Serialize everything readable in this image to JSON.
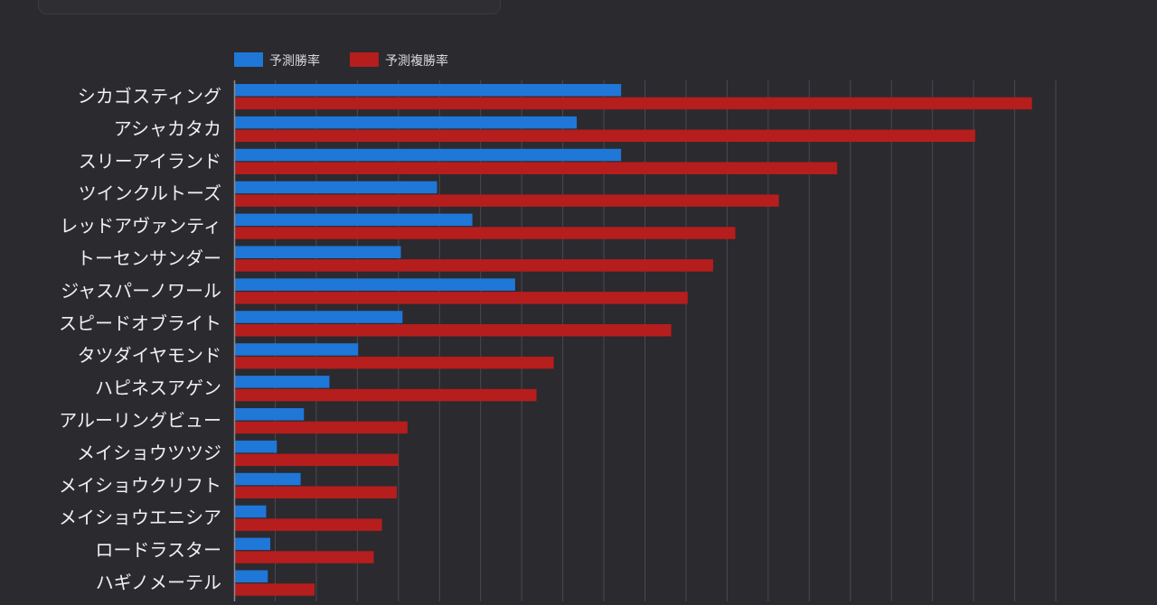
{
  "colors": {
    "win": "#1f77d8",
    "place": "#b61d1d",
    "grid": "#4a4950",
    "axis": "#8a8a90"
  },
  "chart_data": {
    "type": "bar",
    "orientation": "horizontal",
    "title": "",
    "xlabel": "",
    "ylabel": "",
    "legend_position": "top-left",
    "grid": true,
    "xlim": [
      0,
      100
    ],
    "categories": [
      "シカゴスティング",
      "アシャカタカ",
      "スリーアイランド",
      "ツインクルトーズ",
      "レッドアヴァンティ",
      "トーセンサンダー",
      "ジャスパーノワール",
      "スピードオブライト",
      "タツダイヤモンド",
      "ハピネスアゲン",
      "アルーリングビュー",
      "メイショウツツジ",
      "メイショウクリフト",
      "メイショウエニシア",
      "ロードラスター",
      "ハギノメーテル"
    ],
    "series": [
      {
        "name": "予測勝率",
        "color_key": "win",
        "values": [
          47.1,
          41.7,
          47.1,
          24.7,
          29.0,
          20.3,
          34.2,
          20.5,
          15.1,
          11.6,
          8.5,
          5.2,
          8.1,
          3.9,
          4.4,
          4.1
        ]
      },
      {
        "name": "予測複勝率",
        "color_key": "place",
        "values": [
          97.1,
          90.2,
          73.4,
          66.3,
          61.0,
          58.3,
          55.2,
          53.2,
          38.9,
          36.8,
          21.1,
          20.0,
          19.8,
          18.0,
          17.0,
          9.8
        ]
      }
    ]
  }
}
